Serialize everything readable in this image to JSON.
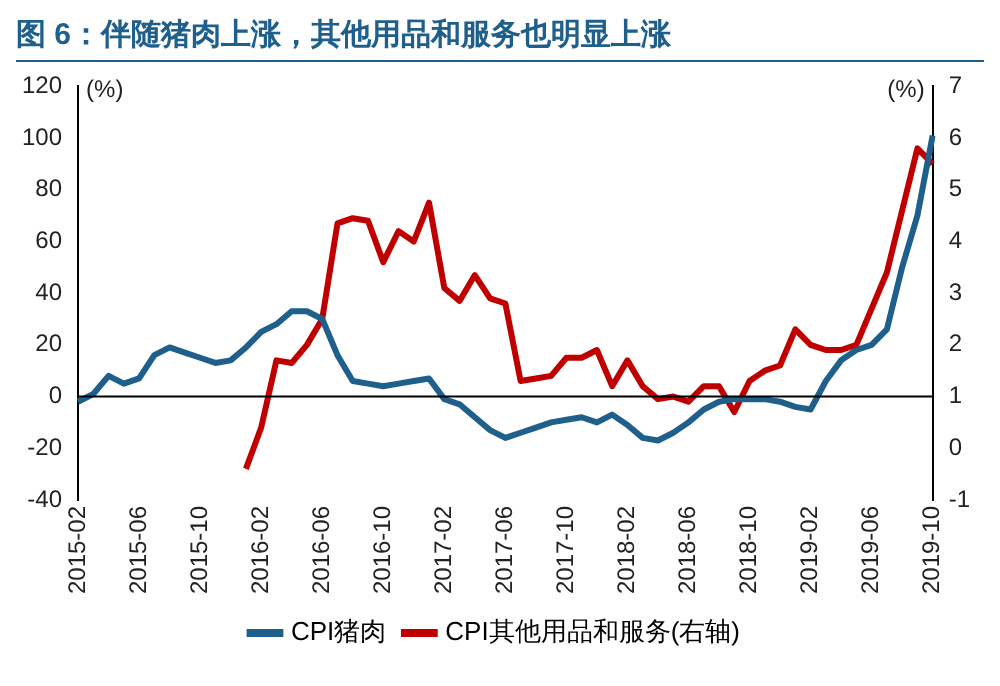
{
  "chart_data": {
    "type": "line",
    "title": "图 6：伴随猪肉上涨，其他用品和服务也明显上涨",
    "ylabel": "(%)",
    "y2label": "(%)",
    "categories": [
      "2015-02",
      null,
      null,
      null,
      "2015-06",
      null,
      null,
      null,
      "2015-10",
      null,
      null,
      null,
      "2016-02",
      null,
      null,
      null,
      "2016-06",
      null,
      null,
      null,
      "2016-10",
      null,
      null,
      null,
      "2017-02",
      null,
      null,
      null,
      "2017-06",
      null,
      null,
      null,
      "2017-10",
      null,
      null,
      null,
      "2018-02",
      null,
      null,
      null,
      "2018-06",
      null,
      null,
      null,
      "2018-10",
      null,
      null,
      null,
      "2019-02",
      null,
      null,
      null,
      "2019-06",
      null,
      null,
      null,
      "2019-10"
    ],
    "series": [
      {
        "name": "CPI猪肉",
        "color": "#1f5f8b",
        "values": [
          -2,
          1,
          8,
          5,
          7,
          16,
          19,
          17,
          15,
          13,
          14,
          19,
          25,
          28,
          33,
          33,
          30,
          16,
          6,
          5,
          4,
          5,
          6,
          7,
          -1,
          -3,
          -8,
          -13,
          -16,
          -14,
          -12,
          -10,
          -9,
          -8,
          -10,
          -7,
          -11,
          -16,
          -17,
          -14,
          -10,
          -5,
          -2,
          -1,
          -1,
          -1,
          -2,
          -4,
          -5,
          6,
          14,
          18,
          20,
          26,
          50,
          70,
          101
        ]
      },
      {
        "name": "CPI其他用品和服务(右轴)",
        "color": "#c00000",
        "axis": "y2",
        "values": [
          null,
          null,
          null,
          null,
          null,
          null,
          null,
          null,
          null,
          null,
          null,
          -0.4,
          0.4,
          1.7,
          1.65,
          2.0,
          2.5,
          4.35,
          4.45,
          4.4,
          3.6,
          4.2,
          4.0,
          4.75,
          3.1,
          2.85,
          3.35,
          2.9,
          2.8,
          1.3,
          1.35,
          1.4,
          1.75,
          1.75,
          1.9,
          1.2,
          1.7,
          1.2,
          0.95,
          1.0,
          0.9,
          1.2,
          1.2,
          0.7,
          1.3,
          1.5,
          1.6,
          2.3,
          2.0,
          1.9,
          1.9,
          2.0,
          2.7,
          3.4,
          4.6,
          5.8,
          5.5
        ]
      }
    ],
    "ylim": [
      -40,
      120
    ],
    "yticks": [
      -40,
      -20,
      0,
      20,
      40,
      60,
      80,
      100,
      120
    ],
    "y2lim": [
      -1,
      7
    ],
    "y2ticks": [
      -1,
      0,
      1,
      2,
      3,
      4,
      5,
      6,
      7
    ],
    "ref_lines": [
      {
        "axis": "y",
        "value": 0,
        "color": "#000000"
      }
    ],
    "grid": false,
    "legend": "bottom",
    "marker": "none",
    "line_style": "solid"
  }
}
